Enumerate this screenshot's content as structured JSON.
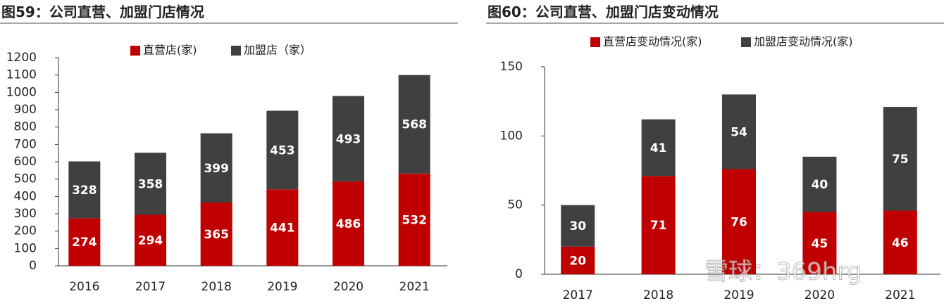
{
  "chart_data": [
    {
      "type": "bar",
      "stacked": true,
      "title": "图59：公司直营、加盟门店情况",
      "categories": [
        "2016",
        "2017",
        "2018",
        "2019",
        "2020",
        "2021"
      ],
      "series": [
        {
          "name": "直营店(家)",
          "color": "#c00000",
          "values": [
            274,
            294,
            365,
            441,
            486,
            532
          ]
        },
        {
          "name": "加盟店（家）",
          "color": "#404040",
          "values": [
            328,
            358,
            399,
            453,
            493,
            568
          ]
        }
      ],
      "ylim": [
        0,
        1200
      ],
      "yticks": [
        0,
        100,
        200,
        300,
        400,
        500,
        600,
        700,
        800,
        900,
        1000,
        1100,
        1200
      ],
      "data_labels": true
    },
    {
      "type": "bar",
      "stacked": true,
      "title": "图60：公司直营、加盟门店变动情况",
      "categories": [
        "2017",
        "2018",
        "2019",
        "2020",
        "2021"
      ],
      "series": [
        {
          "name": "直营店变动情况(家)",
          "color": "#c00000",
          "values": [
            20,
            71,
            76,
            45,
            46
          ]
        },
        {
          "name": "加盟店变动情况(家)",
          "color": "#404040",
          "values": [
            30,
            41,
            54,
            40,
            75
          ]
        }
      ],
      "ylim": [
        0,
        150
      ],
      "yticks": [
        0,
        50,
        100,
        150
      ],
      "data_labels": true
    }
  ],
  "watermark": "雪球：369hrg"
}
